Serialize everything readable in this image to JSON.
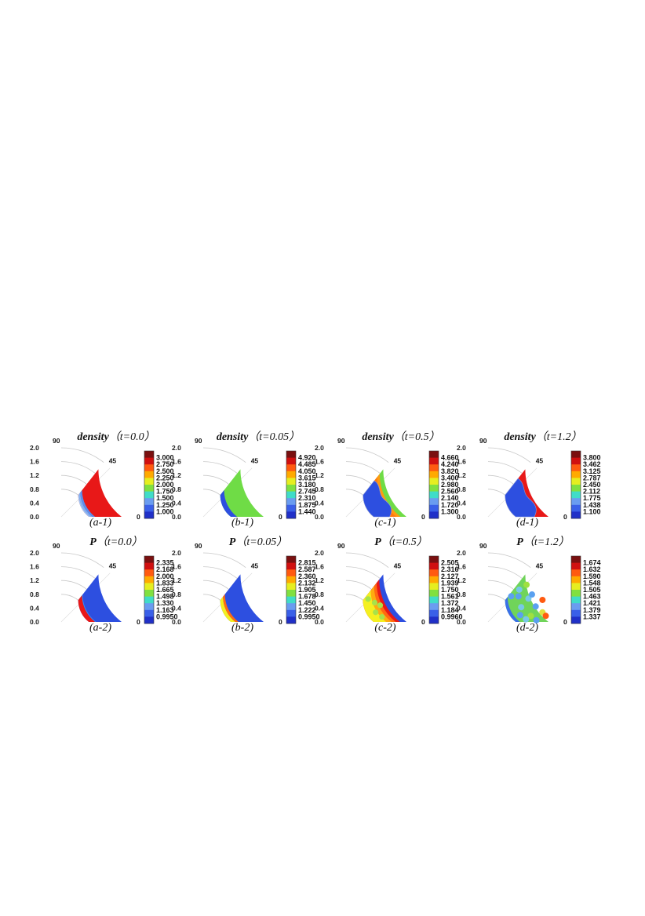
{
  "panels": [
    {
      "id": "a-1",
      "quantity": "density",
      "title_prefix": "density",
      "title_time": "（t=0.0）",
      "label": "(a-1)",
      "pattern": "rings",
      "colorbar": [
        "3.000",
        "2.750",
        "2.500",
        "2.250",
        "2.000",
        "1.750",
        "1.500",
        "1.250",
        "1.000"
      ]
    },
    {
      "id": "b-1",
      "quantity": "density",
      "title_prefix": "density",
      "title_time": "（t=0.05）",
      "label": "(b-1)",
      "pattern": "inner-blue",
      "colorbar": [
        "4.920",
        "4.485",
        "4.050",
        "3.615",
        "3.180",
        "2.745",
        "2.310",
        "1.875",
        "1.440"
      ]
    },
    {
      "id": "c-1",
      "quantity": "density",
      "title_prefix": "density",
      "title_time": "（t=0.5）",
      "label": "(c-1)",
      "pattern": "wavy-bands",
      "colorbar": [
        "4.660",
        "4.240",
        "3.820",
        "3.400",
        "2.980",
        "2.560",
        "2.140",
        "1.720",
        "1.300"
      ]
    },
    {
      "id": "d-1",
      "quantity": "density",
      "title_prefix": "density",
      "title_time": "（t=1.2）",
      "label": "(d-1)",
      "pattern": "wavy-red",
      "colorbar": [
        "3.800",
        "3.462",
        "3.125",
        "2.787",
        "2.450",
        "2.112",
        "1.775",
        "1.438",
        "1.100"
      ]
    },
    {
      "id": "a-2",
      "quantity": "P",
      "title_prefix": "P",
      "title_time": "（t=0.0）",
      "label": "(a-2)",
      "pattern": "inner-red",
      "colorbar": [
        "2.335",
        "2.168",
        "2.000",
        "1.833",
        "1.665",
        "1.498",
        "1.330",
        "1.163",
        "0.9950"
      ]
    },
    {
      "id": "b-2",
      "quantity": "P",
      "title_prefix": "P",
      "title_time": "（t=0.05）",
      "label": "(b-2)",
      "pattern": "inner-yellow",
      "colorbar": [
        "2.815",
        "2.587",
        "2.360",
        "2.132",
        "1.905",
        "1.678",
        "1.450",
        "1.222",
        "0.9950"
      ]
    },
    {
      "id": "c-2",
      "quantity": "P",
      "title_prefix": "P",
      "title_time": "（t=0.5）",
      "label": "(c-2)",
      "pattern": "graded",
      "colorbar": [
        "2.505",
        "2.316",
        "2.127",
        "1.939",
        "1.750",
        "1.561",
        "1.372",
        "1.184",
        "0.9960"
      ]
    },
    {
      "id": "d-2",
      "quantity": "P",
      "title_prefix": "P",
      "title_time": "（t=1.2）",
      "label": "(d-2)",
      "pattern": "speckle",
      "colorbar": [
        "1.674",
        "1.632",
        "1.590",
        "1.548",
        "1.505",
        "1.463",
        "1.421",
        "1.379",
        "1.337"
      ]
    }
  ],
  "axis": {
    "yticks": [
      "2.0",
      "1.6",
      "1.2",
      "0.8",
      "0.4",
      "0.0"
    ],
    "angle_labels": [
      "90",
      "45",
      "0"
    ]
  },
  "colors": {
    "scale": [
      "#7a1010",
      "#d01010",
      "#ff5a10",
      "#ffaa00",
      "#e6ee20",
      "#80e040",
      "#40dcc8",
      "#6a9cf0",
      "#3a60e8",
      "#2030c8"
    ],
    "domain_red": "#e81818",
    "domain_blue": "#2d4fe0",
    "domain_green": "#6fdc46",
    "domain_orange": "#ff7a10",
    "domain_yellow": "#f4f020"
  },
  "chart_data": [
    {
      "type": "heatmap",
      "title": "density（t=0.0）",
      "label": "(a-1)",
      "theta_labels": [
        "90",
        "45",
        "0"
      ],
      "r_ticks": [
        0.0,
        0.4,
        0.8,
        1.2,
        1.6,
        2.0
      ],
      "colorbar_levels": [
        3.0,
        2.75,
        2.5,
        2.25,
        2.0,
        1.75,
        1.5,
        1.25,
        1.0
      ]
    },
    {
      "type": "heatmap",
      "title": "density（t=0.05）",
      "label": "(b-1)",
      "theta_labels": [
        "90",
        "45",
        "0"
      ],
      "r_ticks": [
        0.0,
        0.4,
        0.8,
        1.2,
        1.6,
        2.0
      ],
      "colorbar_levels": [
        4.92,
        4.485,
        4.05,
        3.615,
        3.18,
        2.745,
        2.31,
        1.875,
        1.44
      ]
    },
    {
      "type": "heatmap",
      "title": "density（t=0.5）",
      "label": "(c-1)",
      "theta_labels": [
        "90",
        "45",
        "0"
      ],
      "r_ticks": [
        0.0,
        0.4,
        0.8,
        1.2,
        1.6,
        2.0
      ],
      "colorbar_levels": [
        4.66,
        4.24,
        3.82,
        3.4,
        2.98,
        2.56,
        2.14,
        1.72,
        1.3
      ]
    },
    {
      "type": "heatmap",
      "title": "density（t=1.2）",
      "label": "(d-1)",
      "theta_labels": [
        "90",
        "45",
        "0"
      ],
      "r_ticks": [
        0.0,
        0.4,
        0.8,
        1.2,
        1.6,
        2.0
      ],
      "colorbar_levels": [
        3.8,
        3.462,
        3.125,
        2.787,
        2.45,
        2.112,
        1.775,
        1.438,
        1.1
      ]
    },
    {
      "type": "heatmap",
      "title": "P（t=0.0）",
      "label": "(a-2)",
      "theta_labels": [
        "90",
        "45",
        "0"
      ],
      "r_ticks": [
        0.0,
        0.4,
        0.8,
        1.2,
        1.6,
        2.0
      ],
      "colorbar_levels": [
        2.335,
        2.168,
        2.0,
        1.833,
        1.665,
        1.498,
        1.33,
        1.163,
        0.995
      ]
    },
    {
      "type": "heatmap",
      "title": "P（t=0.05）",
      "label": "(b-2)",
      "theta_labels": [
        "90",
        "45",
        "0"
      ],
      "r_ticks": [
        0.0,
        0.4,
        0.8,
        1.2,
        1.6,
        2.0
      ],
      "colorbar_levels": [
        2.815,
        2.587,
        2.36,
        2.132,
        1.905,
        1.678,
        1.45,
        1.222,
        0.995
      ]
    },
    {
      "type": "heatmap",
      "title": "P（t=0.5）",
      "label": "(c-2)",
      "theta_labels": [
        "90",
        "45",
        "0"
      ],
      "r_ticks": [
        0.0,
        0.4,
        0.8,
        1.2,
        1.6,
        2.0
      ],
      "colorbar_levels": [
        2.505,
        2.316,
        2.127,
        1.939,
        1.75,
        1.561,
        1.372,
        1.184,
        0.996
      ]
    },
    {
      "type": "heatmap",
      "title": "P（t=1.2）",
      "label": "(d-2)",
      "theta_labels": [
        "90",
        "45",
        "0"
      ],
      "r_ticks": [
        0.0,
        0.4,
        0.8,
        1.2,
        1.6,
        2.0
      ],
      "colorbar_levels": [
        1.674,
        1.632,
        1.59,
        1.548,
        1.505,
        1.463,
        1.421,
        1.379,
        1.337
      ]
    }
  ]
}
